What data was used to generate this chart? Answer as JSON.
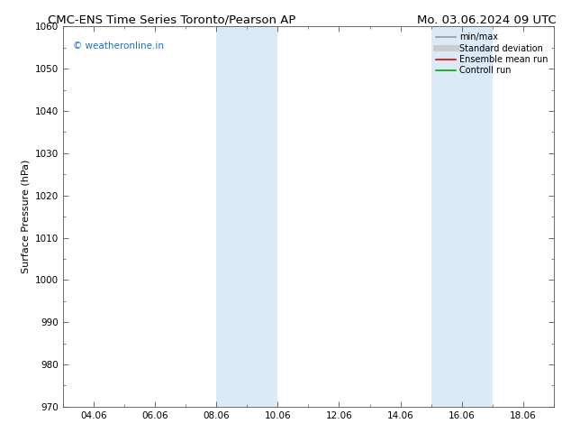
{
  "title_left": "CMC-ENS Time Series Toronto/Pearson AP",
  "title_right": "Mo. 03.06.2024 09 UTC",
  "ylabel": "Surface Pressure (hPa)",
  "ylim": [
    970,
    1060
  ],
  "yticks": [
    970,
    980,
    990,
    1000,
    1010,
    1020,
    1030,
    1040,
    1050,
    1060
  ],
  "xtick_labels": [
    "04.06",
    "06.06",
    "08.06",
    "10.06",
    "12.06",
    "14.06",
    "16.06",
    "18.06"
  ],
  "xtick_positions": [
    4,
    6,
    8,
    10,
    12,
    14,
    16,
    18
  ],
  "xmin": 3.0,
  "xmax": 19.0,
  "shade_bands": [
    {
      "xstart": 8.0,
      "xend": 9.0
    },
    {
      "xstart": 9.0,
      "xend": 10.0
    },
    {
      "xstart": 15.0,
      "xend": 16.0
    },
    {
      "xstart": 16.0,
      "xend": 17.0
    }
  ],
  "shade_color": "#daeaf6",
  "watermark": "© weatheronline.in",
  "watermark_color": "#1a6fc4",
  "legend_items": [
    {
      "label": "min/max",
      "color": "#999999",
      "lw": 1.2,
      "type": "line"
    },
    {
      "label": "Standard deviation",
      "color": "#cccccc",
      "lw": 5,
      "type": "line"
    },
    {
      "label": "Ensemble mean run",
      "color": "#dd0000",
      "lw": 1.2,
      "type": "line"
    },
    {
      "label": "Controll run",
      "color": "#00aa00",
      "lw": 1.2,
      "type": "line"
    }
  ],
  "bg_color": "#ffffff",
  "title_fontsize": 9.5,
  "label_fontsize": 8,
  "tick_fontsize": 7.5
}
